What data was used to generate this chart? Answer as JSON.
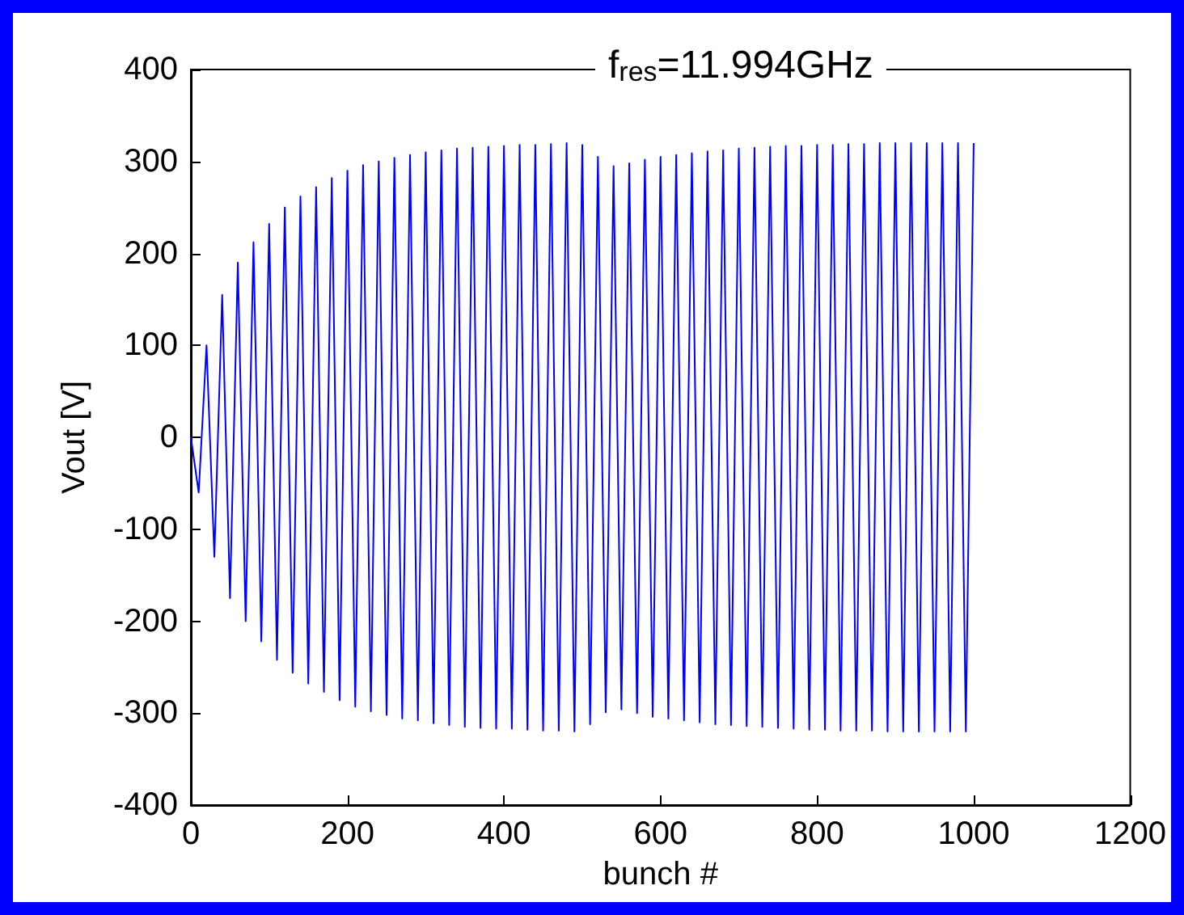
{
  "chart_data": {
    "type": "line",
    "title": "f$_{res}$=11.994GHz",
    "xlabel": "bunch #",
    "ylabel": "Vout [V]",
    "x": [
      0,
      10,
      20,
      30,
      40,
      50,
      60,
      70,
      80,
      90,
      100,
      110,
      120,
      130,
      140,
      150,
      160,
      170,
      180,
      190,
      200,
      210,
      220,
      230,
      240,
      250,
      260,
      270,
      280,
      290,
      300,
      310,
      320,
      330,
      340,
      350,
      360,
      370,
      380,
      390,
      400,
      410,
      420,
      430,
      440,
      450,
      460,
      470,
      480,
      490,
      500,
      510,
      520,
      530,
      540,
      550,
      560,
      570,
      580,
      590,
      600,
      610,
      620,
      630,
      640,
      650,
      660,
      670,
      680,
      690,
      700,
      710,
      720,
      730,
      740,
      750,
      760,
      770,
      780,
      790,
      800,
      810,
      820,
      830,
      840,
      850,
      860,
      870,
      880,
      890,
      900,
      910,
      920,
      930,
      940,
      950,
      960,
      970,
      980,
      990,
      1000
    ],
    "series": [
      {
        "color": "#0000ff",
        "values": [
          0,
          -60,
          100,
          -130,
          155,
          -175,
          190,
          -200,
          212,
          -222,
          232,
          -242,
          250,
          -256,
          262,
          -268,
          272,
          -277,
          282,
          -286,
          290,
          -293,
          296,
          -298,
          300,
          -302,
          304,
          -306,
          307,
          -308,
          310,
          -311,
          312,
          -313,
          314,
          -315,
          315,
          -316,
          316,
          -317,
          317,
          -317,
          318,
          -318,
          318,
          -319,
          319,
          -319,
          320,
          -320,
          318,
          -312,
          305,
          -299,
          295,
          -296,
          298,
          -300,
          302,
          -304,
          305,
          -306,
          307,
          -308,
          309,
          -310,
          311,
          -312,
          312,
          -313,
          314,
          -314,
          315,
          -315,
          316,
          -316,
          317,
          -317,
          317,
          -318,
          318,
          -318,
          318,
          -319,
          319,
          -319,
          319,
          -319,
          320,
          -320,
          320,
          -320,
          320,
          -320,
          320,
          -320,
          320,
          -320,
          320,
          -320,
          320
        ]
      }
    ],
    "xlim": [
      0,
      1200
    ],
    "xticks": [
      0,
      200,
      400,
      600,
      800,
      1000,
      1200
    ],
    "ylim": [
      -400,
      400
    ],
    "yticks": [
      -400,
      -300,
      -200,
      -100,
      0,
      100,
      200,
      300,
      400
    ],
    "grid": false,
    "marker": "none",
    "line_style": "solid"
  }
}
